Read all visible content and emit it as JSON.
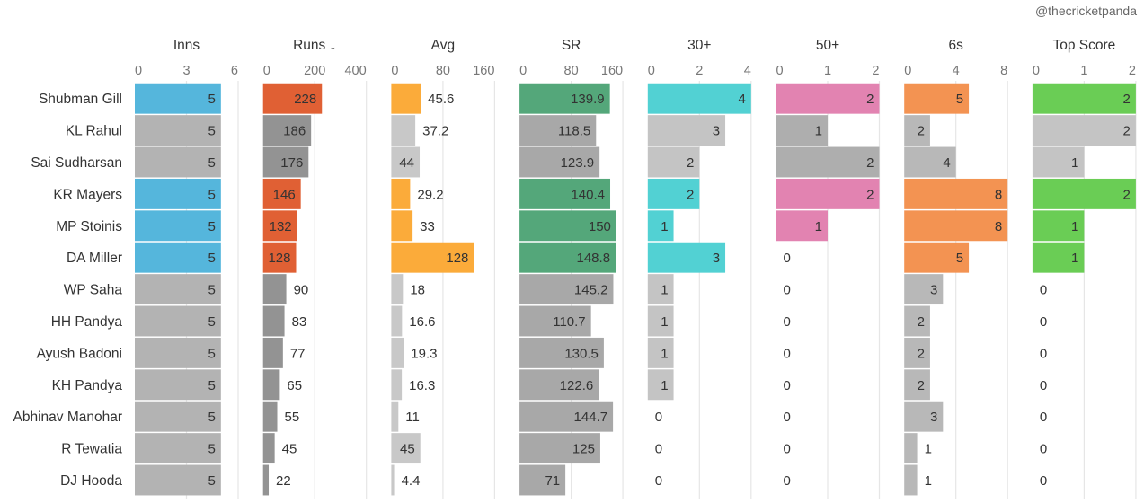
{
  "credit": "@thecricketpanda",
  "chart_data": {
    "type": "bar",
    "orientation": "horizontal",
    "layout": "small-multiples",
    "categories": [
      "Shubman Gill",
      "KL Rahul",
      "Sai Sudharsan",
      "KR Mayers",
      "MP Stoinis",
      "DA Miller",
      "WP Saha",
      "HH Pandya",
      "Ayush Badoni",
      "KH Pandya",
      "Abhinav Manohar",
      "R Tewatia",
      "DJ Hooda"
    ],
    "highlight": [
      true,
      false,
      false,
      true,
      true,
      true,
      false,
      false,
      false,
      false,
      false,
      false,
      false
    ],
    "grid": true,
    "series": [
      {
        "name": "Inns",
        "title": "Inns",
        "ticks": [
          "0",
          "3",
          "6"
        ],
        "xlim": [
          0,
          6
        ],
        "color": "#55b6dc",
        "muted_color": "#b3b3b3",
        "values": [
          5,
          5,
          5,
          5,
          5,
          5,
          5,
          5,
          5,
          5,
          5,
          5,
          5
        ],
        "labels": [
          "5",
          "5",
          "5",
          "5",
          "5",
          "5",
          "5",
          "5",
          "5",
          "5",
          "5",
          "5",
          "5"
        ]
      },
      {
        "name": "Runs",
        "title": "Runs ↓",
        "ticks": [
          "0",
          "200",
          "400"
        ],
        "xlim": [
          0,
          400
        ],
        "color": "#e06034",
        "muted_color": "#939393",
        "values": [
          228,
          186,
          176,
          146,
          132,
          128,
          90,
          83,
          77,
          65,
          55,
          45,
          22
        ],
        "labels": [
          "228",
          "186",
          "176",
          "146",
          "132",
          "128",
          "90",
          "83",
          "77",
          "65",
          "55",
          "45",
          "22"
        ]
      },
      {
        "name": "Avg",
        "title": "Avg",
        "ticks": [
          "0",
          "80",
          "160"
        ],
        "xlim": [
          0,
          160
        ],
        "color": "#fbab3a",
        "muted_color": "#c8c8c8",
        "values": [
          45.6,
          37.2,
          44,
          29.2,
          33,
          128,
          18,
          16.6,
          19.3,
          16.3,
          11,
          45,
          4.4
        ],
        "labels": [
          "45.6",
          "37.2",
          "44",
          "29.2",
          "33",
          "128",
          "18",
          "16.6",
          "19.3",
          "16.3",
          "11",
          "45",
          "4.4"
        ]
      },
      {
        "name": "SR",
        "title": "SR",
        "ticks": [
          "0",
          "80",
          "160"
        ],
        "xlim": [
          0,
          160
        ],
        "color": "#54a77a",
        "muted_color": "#a8a8a8",
        "values": [
          139.9,
          118.5,
          123.9,
          140.4,
          150,
          148.8,
          145.2,
          110.7,
          130.5,
          122.6,
          144.7,
          125,
          71
        ],
        "labels": [
          "139.9",
          "118.5",
          "123.9",
          "140.4",
          "150",
          "148.8",
          "145.2",
          "110.7",
          "130.5",
          "122.6",
          "144.7",
          "125",
          "71"
        ]
      },
      {
        "name": "30+",
        "title": "30+",
        "ticks": [
          "0",
          "2",
          "4"
        ],
        "xlim": [
          0,
          4
        ],
        "color": "#52d1d3",
        "muted_color": "#c4c4c4",
        "values": [
          4,
          3,
          2,
          2,
          1,
          3,
          1,
          1,
          1,
          1,
          0,
          0,
          0
        ],
        "labels": [
          "4",
          "3",
          "2",
          "2",
          "1",
          "3",
          "1",
          "1",
          "1",
          "1",
          "0",
          "0",
          "0"
        ]
      },
      {
        "name": "50+",
        "title": "50+",
        "ticks": [
          "0",
          "1",
          "2"
        ],
        "xlim": [
          0,
          2
        ],
        "color": "#e283b1",
        "muted_color": "#aeaeae",
        "values": [
          2,
          1,
          2,
          2,
          1,
          0,
          0,
          0,
          0,
          0,
          0,
          0,
          0
        ],
        "labels": [
          "2",
          "1",
          "2",
          "2",
          "1",
          "0",
          "0",
          "0",
          "0",
          "0",
          "0",
          "0",
          "0"
        ]
      },
      {
        "name": "6s",
        "title": "6s",
        "ticks": [
          "0",
          "4",
          "8"
        ],
        "xlim": [
          0,
          8
        ],
        "color": "#f39352",
        "muted_color": "#b8b8b8",
        "values": [
          5,
          2,
          4,
          8,
          8,
          5,
          3,
          2,
          2,
          2,
          3,
          1,
          1
        ],
        "labels": [
          "5",
          "2",
          "4",
          "8",
          "8",
          "5",
          "3",
          "2",
          "2",
          "2",
          "3",
          "1",
          "1"
        ]
      },
      {
        "name": "Top Score",
        "title": "Top Score",
        "ticks": [
          "0",
          "1",
          "2"
        ],
        "xlim": [
          0,
          2
        ],
        "color": "#6acd55",
        "muted_color": "#c4c4c4",
        "values": [
          2,
          2,
          1,
          2,
          1,
          1,
          0,
          0,
          0,
          0,
          0,
          0,
          0
        ],
        "labels": [
          "2",
          "2",
          "1",
          "2",
          "1",
          "1",
          "0",
          "0",
          "0",
          "0",
          "0",
          "0",
          "0"
        ]
      }
    ]
  }
}
